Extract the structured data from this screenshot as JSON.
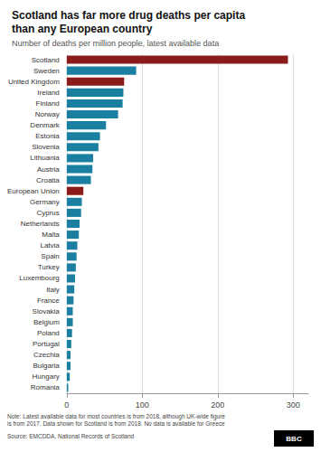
{
  "chart_data": {
    "type": "bar",
    "orientation": "horizontal",
    "title": "Scotland has far more drug deaths per capita\nthan any European country",
    "subtitle": "Number of deaths per million people, latest available data",
    "annotations": [
      "Note: Latest available data for most countries is from 2018, although UK-wide figure\nis from 2017. Data shown for Scotland is from 2018. No data is available for Greece",
      "Source: EMCDDA, National Records of Scotland",
      "BBC"
    ],
    "categories": [
      "Scotland",
      "Sweden",
      "United Kingdom",
      "Ireland",
      "Finland",
      "Norway",
      "Denmark",
      "Estonia",
      "Slovenia",
      "Lithuania",
      "Austria",
      "Croatia",
      "European Union",
      "Germany",
      "Cyprus",
      "Netherlands",
      "Malta",
      "Latvia",
      "Spain",
      "Turkey",
      "Luxembourg",
      "Italy",
      "France",
      "Slovakia",
      "Belgium",
      "Poland",
      "Portugal",
      "Czechia",
      "Bulgaria",
      "Hungary",
      "Romania"
    ],
    "values": [
      293,
      92,
      76,
      75,
      74,
      68,
      52,
      44,
      42,
      35,
      34,
      32,
      22,
      20,
      19,
      17,
      16,
      14,
      13,
      12,
      11,
      10,
      9,
      8,
      8,
      7,
      6,
      5,
      5,
      4,
      2
    ],
    "colors": [
      "#8B1A1A",
      "#1a7fa0",
      "#8B1A1A",
      "#1a7fa0",
      "#1a7fa0",
      "#1a7fa0",
      "#1a7fa0",
      "#1a7fa0",
      "#1a7fa0",
      "#1a7fa0",
      "#1a7fa0",
      "#1a7fa0",
      "#8B1A1A",
      "#1a7fa0",
      "#1a7fa0",
      "#1a7fa0",
      "#1a7fa0",
      "#1a7fa0",
      "#1a7fa0",
      "#1a7fa0",
      "#1a7fa0",
      "#1a7fa0",
      "#1a7fa0",
      "#1a7fa0",
      "#1a7fa0",
      "#1a7fa0",
      "#1a7fa0",
      "#1a7fa0",
      "#1a7fa0",
      "#1a7fa0",
      "#1a7fa0"
    ],
    "xlim": [
      0,
      320
    ],
    "xticks": [
      0,
      100,
      200,
      300
    ],
    "grid": true
  }
}
